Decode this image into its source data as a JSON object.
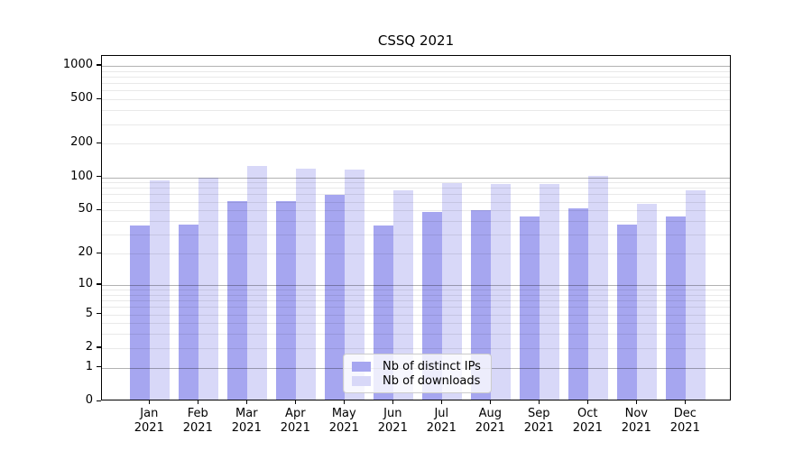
{
  "chart_data": {
    "type": "bar",
    "title": "CSSQ 2021",
    "categories": [
      "Jan 2021",
      "Feb 2021",
      "Mar 2021",
      "Apr 2021",
      "May 2021",
      "Jun 2021",
      "Jul 2021",
      "Aug 2021",
      "Sep 2021",
      "Oct 2021",
      "Nov 2021",
      "Dec 2021"
    ],
    "series": [
      {
        "name": "Nb of distinct IPs",
        "color": "#a6a6f0",
        "values": [
          35,
          36,
          58,
          59,
          67,
          35,
          47,
          48,
          42,
          50,
          36,
          42
        ]
      },
      {
        "name": "Nb of downloads",
        "color": "#d8d8f8",
        "values": [
          90,
          95,
          121,
          116,
          112,
          73,
          85,
          84,
          83,
          100,
          55,
          74
        ]
      }
    ],
    "xlabel": "",
    "ylabel": "",
    "yscale": "symlog-log1p",
    "ylim": [
      0,
      1230
    ],
    "yticks": [
      0,
      1,
      2,
      5,
      10,
      20,
      50,
      100,
      200,
      500,
      1000
    ],
    "ytick_labels": [
      "0",
      "1",
      "2",
      "5",
      "10",
      "20",
      "50",
      "100",
      "200",
      "500",
      "1000"
    ],
    "grid": {
      "major_values": [
        1,
        10,
        100,
        1000
      ],
      "minor_values": [
        2,
        3,
        4,
        5,
        6,
        7,
        8,
        9,
        20,
        30,
        40,
        50,
        60,
        70,
        80,
        90,
        200,
        300,
        400,
        500,
        600,
        700,
        800,
        900
      ]
    },
    "legend": {
      "position": "lower center",
      "entries": [
        "Nb of distinct IPs",
        "Nb of downloads"
      ]
    },
    "colors": {
      "bar_distinct_ips": "#a6a6f0",
      "bar_downloads": "#d8d8f8",
      "major_grid": "#b3b3b3",
      "minor_grid": "#e8e8e8",
      "spine": "#000000",
      "text": "#000000"
    }
  }
}
